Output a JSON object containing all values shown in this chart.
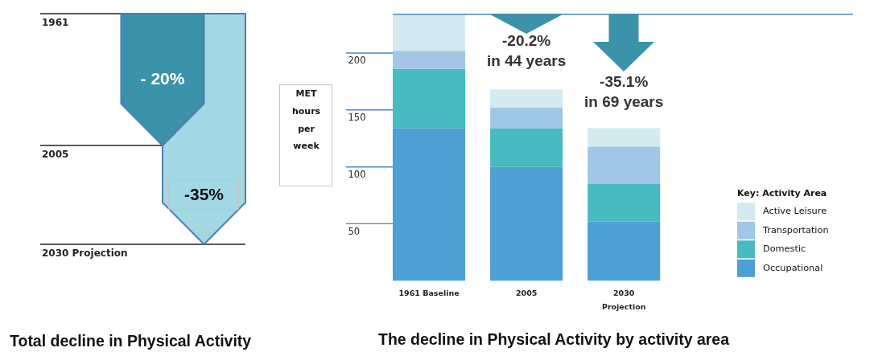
{
  "chart_data": [
    {
      "type": "other",
      "title": "Total decline in Physical Activity",
      "values": [
        -20,
        -35
      ],
      "value_labels": [
        "- 20%",
        "-35%"
      ],
      "colors": [
        "#3a93a8",
        "#a3d7e3"
      ],
      "annotations": [
        "1961",
        "2005",
        "2030 Projection"
      ]
    },
    {
      "type": "bar",
      "stacked": true,
      "title": "The decline in Physical Activity by activity area",
      "ylabel": "MET hours per week",
      "legend_title": "Key: Activity Area",
      "legend": "bottom right",
      "categories": [
        "1961 Baseline",
        "2005",
        "2030 Projection"
      ],
      "series": [
        {
          "name": "Occupational",
          "color": "#4e9fd4",
          "values": [
            134,
            100,
            52
          ]
        },
        {
          "name": "Domestic",
          "color": "#47bbbf",
          "values": [
            52,
            34,
            33
          ]
        },
        {
          "name": "Transportation",
          "color": "#a2c6e6",
          "values": [
            16,
            18,
            33
          ]
        },
        {
          "name": "Active Leisure",
          "color": "#d3eaf1",
          "values": [
            32,
            16,
            16
          ]
        }
      ],
      "ylim": [
        0,
        234
      ],
      "yticks": [
        50,
        100,
        150,
        200
      ],
      "ref_lines": [
        {
          "axis": "y",
          "value": 234,
          "color": "#4a86c5"
        }
      ],
      "annotations": [
        "-20.2%\nin 44 years",
        "-35.1%\nin 69 years"
      ]
    }
  ]
}
